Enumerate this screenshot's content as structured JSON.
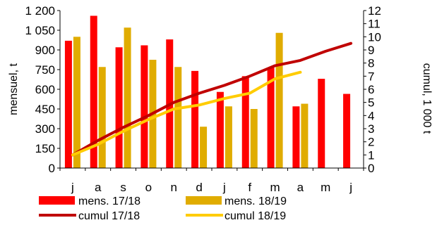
{
  "chart_data": {
    "type": "bar",
    "categories": [
      "j",
      "a",
      "s",
      "o",
      "n",
      "d",
      "j",
      "f",
      "m",
      "a",
      "m",
      "j"
    ],
    "y_left": {
      "label": "mensuel, t",
      "range": [
        0,
        1200
      ],
      "ticks": [
        "0",
        "150",
        "300",
        "450",
        "600",
        "750",
        "900",
        "1 050",
        "1 200"
      ],
      "tick_values": [
        0,
        150,
        300,
        450,
        600,
        750,
        900,
        1050,
        1200
      ]
    },
    "y_right": {
      "label": "cumul, 1 000 t",
      "range": [
        0,
        12
      ],
      "ticks": [
        "0",
        "1",
        "2",
        "3",
        "4",
        "5",
        "6",
        "7",
        "8",
        "9",
        "10",
        "11",
        "12"
      ],
      "tick_values": [
        0,
        1,
        2,
        3,
        4,
        5,
        6,
        7,
        8,
        9,
        10,
        11,
        12
      ]
    },
    "bar_series": [
      {
        "name": "mens. 17/18",
        "color": "#ff0000",
        "axis": "left",
        "values": [
          970,
          1160,
          920,
          935,
          980,
          740,
          580,
          700,
          765,
          470,
          680,
          565
        ]
      },
      {
        "name": "mens. 18/19",
        "color": "#e0ac00",
        "axis": "left",
        "values": [
          1000,
          770,
          1070,
          825,
          770,
          315,
          470,
          450,
          1030,
          490,
          null,
          null
        ]
      }
    ],
    "line_series": [
      {
        "name": "cumul 17/18",
        "color": "#c00000",
        "axis": "right",
        "values": [
          1.0,
          2.1,
          3.1,
          4.0,
          5.0,
          5.7,
          6.3,
          7.0,
          7.8,
          8.2,
          8.9,
          9.5
        ]
      },
      {
        "name": "cumul 18/19",
        "color": "#ffcc00",
        "axis": "right",
        "values": [
          1.0,
          1.8,
          2.8,
          3.7,
          4.5,
          4.8,
          5.3,
          5.7,
          6.8,
          7.3,
          null,
          null
        ]
      }
    ],
    "legend_position": "bottom",
    "grid": false
  }
}
